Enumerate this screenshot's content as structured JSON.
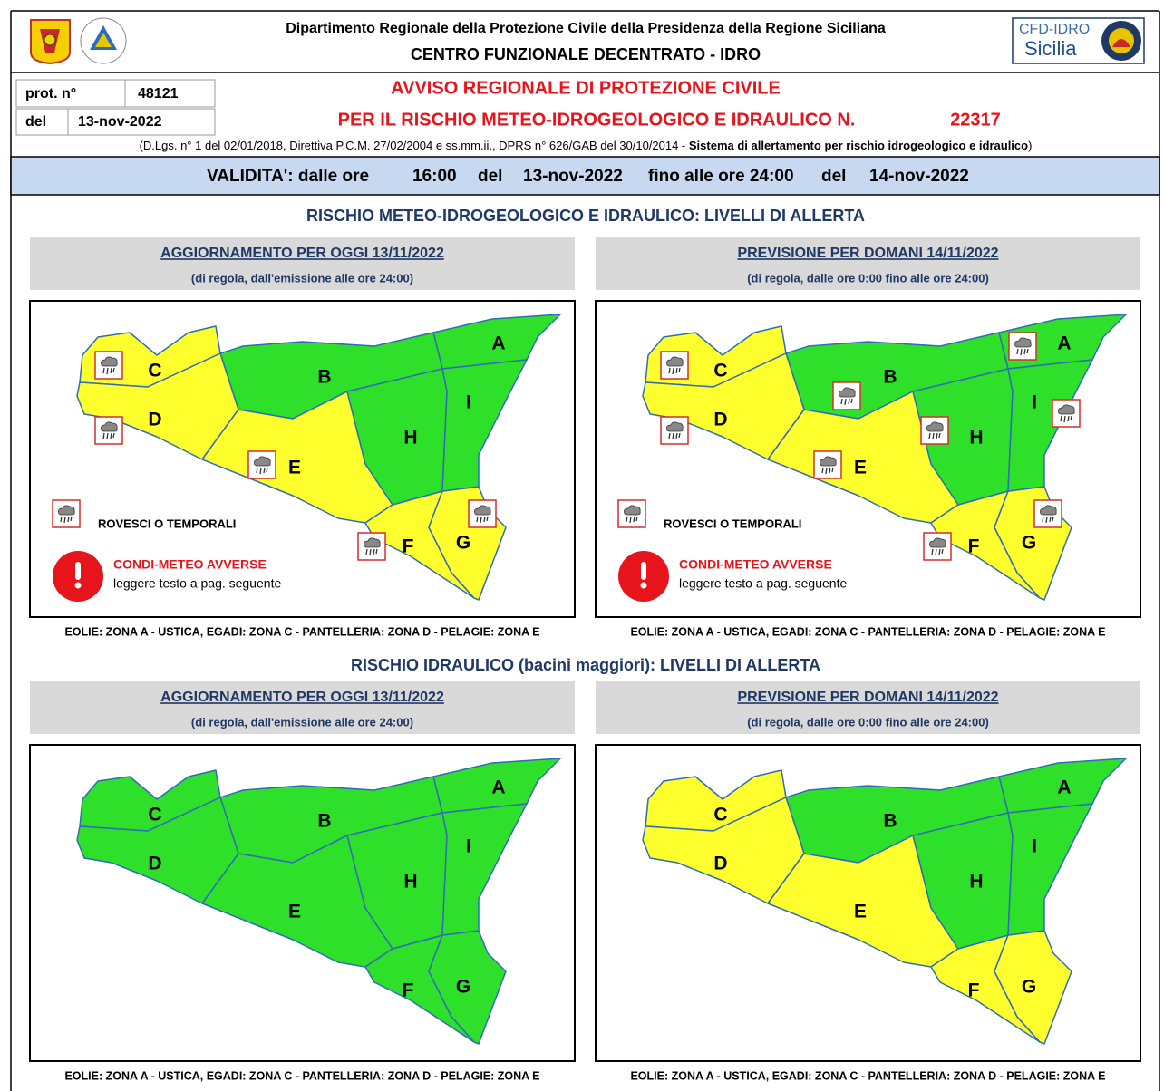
{
  "header": {
    "department": "Dipartimento Regionale della Protezione Civile della Presidenza della Regione Siciliana",
    "centre": "CENTRO FUNZIONALE DECENTRATO - IDRO",
    "logo": [
      "CFD-IDRO",
      "Sicilia"
    ]
  },
  "protocol": {
    "label": "prot. n°",
    "number": "48121",
    "date_label": "del",
    "date": "13-nov-2022"
  },
  "title": {
    "line1": "AVVISO REGIONALE DI PROTEZIONE CIVILE",
    "line2": "PER IL RISCHIO METEO-IDROGEOLOGICO E IDRAULICO N.",
    "number": "22317"
  },
  "legal": {
    "text": "(D.Lgs. n° 1 del 02/01/2018, Direttiva P.C.M. 27/02/2004 e ss.mm.ii., DPRS n° 626/GAB del 30/10/2014 - ",
    "bold": "Sistema di allertamento per rischio idrogeologico e idraulico",
    "close": ")"
  },
  "validity": [
    "VALIDITA': dalle ore",
    "16:00",
    "del",
    "13-nov-2022",
    "fino alle ore 24:00",
    "del",
    "14-nov-2022"
  ],
  "sections": [
    {
      "title": "RISCHIO METEO-IDROGEOLOGICO E IDRAULICO: LIVELLI DI ALLERTA",
      "panels": [
        {
          "heading": "AGGIORNAMENTO PER OGGI 13/11/2022",
          "subheading": "(di regola, dall'emissione alle ore 24:00)",
          "zones": [
            {
              "label": "A",
              "color": "#2fe02a",
              "storm": false
            },
            {
              "label": "B",
              "color": "#2fe02a",
              "storm": false
            },
            {
              "label": "C",
              "color": "#ffff2e",
              "storm": true
            },
            {
              "label": "D",
              "color": "#ffff2e",
              "storm": true
            },
            {
              "label": "E",
              "color": "#ffff2e",
              "storm": true
            },
            {
              "label": "F",
              "color": "#ffff2e",
              "storm": true
            },
            {
              "label": "G",
              "color": "#ffff2e",
              "storm": true
            },
            {
              "label": "H",
              "color": "#2fe02a",
              "storm": false
            },
            {
              "label": "I",
              "color": "#2fe02a",
              "storm": false
            }
          ],
          "legend": {
            "storm": "ROVESCI O TEMPORALI",
            "alert": "CONDI-METEO AVVERSE",
            "note": "leggere testo a pag. seguente"
          },
          "footer": "EOLIE: ZONA A - USTICA, EGADI: ZONA C - PANTELLERIA: ZONA D - PELAGIE: ZONA E"
        },
        {
          "heading": "PREVISIONE PER DOMANI 14/11/2022",
          "subheading": "(di regola, dalle ore 0:00 fino alle ore 24:00)",
          "zones": [
            {
              "label": "A",
              "color": "#2fe02a",
              "storm": true
            },
            {
              "label": "B",
              "color": "#2fe02a",
              "storm": true
            },
            {
              "label": "C",
              "color": "#ffff2e",
              "storm": true
            },
            {
              "label": "D",
              "color": "#ffff2e",
              "storm": true
            },
            {
              "label": "E",
              "color": "#ffff2e",
              "storm": true
            },
            {
              "label": "F",
              "color": "#ffff2e",
              "storm": true
            },
            {
              "label": "G",
              "color": "#ffff2e",
              "storm": true
            },
            {
              "label": "H",
              "color": "#2fe02a",
              "storm": true
            },
            {
              "label": "I",
              "color": "#2fe02a",
              "storm": true
            }
          ],
          "legend": {
            "storm": "ROVESCI O TEMPORALI",
            "alert": "CONDI-METEO AVVERSE",
            "note": "leggere testo a pag. seguente"
          },
          "footer": "EOLIE: ZONA A - USTICA, EGADI: ZONA C - PANTELLERIA: ZONA D - PELAGIE: ZONA E"
        }
      ]
    },
    {
      "title": "RISCHIO IDRAULICO (bacini maggiori): LIVELLI DI ALLERTA",
      "panels": [
        {
          "heading": "AGGIORNAMENTO PER OGGI 13/11/2022",
          "subheading": "(di regola, dall'emissione alle ore 24:00)",
          "zones": [
            {
              "label": "A",
              "color": "#2fe02a",
              "storm": false
            },
            {
              "label": "B",
              "color": "#2fe02a",
              "storm": false
            },
            {
              "label": "C",
              "color": "#2fe02a",
              "storm": false
            },
            {
              "label": "D",
              "color": "#2fe02a",
              "storm": false
            },
            {
              "label": "E",
              "color": "#2fe02a",
              "storm": false
            },
            {
              "label": "F",
              "color": "#2fe02a",
              "storm": false
            },
            {
              "label": "G",
              "color": "#2fe02a",
              "storm": false
            },
            {
              "label": "H",
              "color": "#2fe02a",
              "storm": false
            },
            {
              "label": "I",
              "color": "#2fe02a",
              "storm": false
            }
          ],
          "footer": "EOLIE: ZONA A - USTICA, EGADI: ZONA C - PANTELLERIA: ZONA D - PELAGIE: ZONA E"
        },
        {
          "heading": "PREVISIONE PER DOMANI 14/11/2022",
          "subheading": "(di regola, dalle ore 0:00 fino alle ore 24:00)",
          "zones": [
            {
              "label": "A",
              "color": "#2fe02a",
              "storm": false
            },
            {
              "label": "B",
              "color": "#2fe02a",
              "storm": false
            },
            {
              "label": "C",
              "color": "#ffff2e",
              "storm": false
            },
            {
              "label": "D",
              "color": "#ffff2e",
              "storm": false
            },
            {
              "label": "E",
              "color": "#ffff2e",
              "storm": false
            },
            {
              "label": "F",
              "color": "#ffff2e",
              "storm": false
            },
            {
              "label": "G",
              "color": "#ffff2e",
              "storm": false
            },
            {
              "label": "H",
              "color": "#2fe02a",
              "storm": false
            },
            {
              "label": "I",
              "color": "#2fe02a",
              "storm": false
            }
          ],
          "footer": "EOLIE: ZONA A - USTICA, EGADI: ZONA C - PANTELLERIA: ZONA D - PELAGIE: ZONA E"
        }
      ]
    }
  ]
}
